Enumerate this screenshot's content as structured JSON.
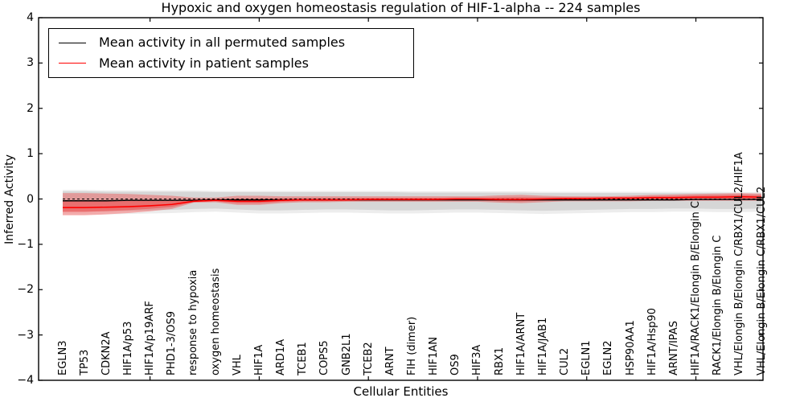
{
  "figure": {
    "title": "Hypoxic and oxygen homeostasis regulation of HIF-1-alpha -- 224 samples",
    "xlabel": "Cellular Entities",
    "ylabel": "Inferred Activity"
  },
  "legend": {
    "entries": [
      {
        "label": "Mean activity in all permuted samples",
        "color": "#000000"
      },
      {
        "label": "Mean activity in patient samples",
        "color": "#ff0000"
      }
    ]
  },
  "colors": {
    "permuted_line": "#000000",
    "patient_line": "#ff0000",
    "patient_band": "#ff0000",
    "permuted_band": "#999999",
    "axis": "#000000"
  },
  "chart_data": {
    "type": "line",
    "title": "Hypoxic and oxygen homeostasis regulation of HIF-1-alpha -- 224 samples",
    "xlabel": "Cellular Entities",
    "ylabel": "Inferred Activity",
    "ylim": [
      -4,
      4
    ],
    "y_ticks": [
      "4",
      "3",
      "2",
      "1",
      "0",
      "−1",
      "−2",
      "−3",
      "−4"
    ],
    "y_tick_values": [
      4,
      3,
      2,
      1,
      0,
      -1,
      -2,
      -3,
      -4
    ],
    "x_major_tick_indices": [
      5,
      10,
      15,
      20,
      25,
      30
    ],
    "grid": false,
    "legend_position": "upper left",
    "zero_reference_line": 0.0,
    "categories": [
      "EGLN3",
      "TP53",
      "CDKN2A",
      "HIF1A/p53",
      "HIF1A/p19ARF",
      "PHD1-3/OS9",
      "response to hypoxia",
      "oxygen homeostasis",
      "VHL",
      "HIF1A",
      "ARD1A",
      "TCEB1",
      "COPS5",
      "GNB2L1",
      "TCEB2",
      "ARNT",
      "FIH (dimer)",
      "HIF1AN",
      "OS9",
      "HIF3A",
      "RBX1",
      "HIF1A/ARNT",
      "HIF1A/JAB1",
      "CUL2",
      "EGLN1",
      "EGLN2",
      "HSP90AA1",
      "HIF1A/Hsp90",
      "ARNT/IPAS",
      "HIF1A/RACK1/Elongin B/Elongin C",
      "RACK1/Elongin B/Elongin C",
      "VHL/Elongin B/Elongin C/RBX1/CUL2/HIF1A",
      "VHL/Elongin B/Elongin C/RBX1/CUL2"
    ],
    "series": [
      {
        "name": "Mean activity in all permuted samples",
        "style": "solid",
        "color": "#000000",
        "values": [
          -0.04,
          -0.04,
          -0.04,
          -0.03,
          -0.03,
          -0.03,
          -0.03,
          -0.02,
          -0.02,
          -0.02,
          -0.02,
          -0.02,
          -0.02,
          -0.02,
          -0.02,
          -0.02,
          -0.02,
          -0.02,
          -0.02,
          -0.02,
          -0.02,
          -0.02,
          -0.02,
          -0.02,
          -0.02,
          -0.02,
          -0.02,
          -0.02,
          -0.02,
          -0.01,
          -0.01,
          -0.01,
          -0.01
        ],
        "band_upper": [
          0.17,
          0.17,
          0.16,
          0.16,
          0.16,
          0.16,
          0.16,
          0.15,
          0.15,
          0.15,
          0.15,
          0.15,
          0.15,
          0.15,
          0.15,
          0.15,
          0.14,
          0.14,
          0.14,
          0.14,
          0.14,
          0.14,
          0.13,
          0.13,
          0.13,
          0.13,
          0.13,
          0.13,
          0.13,
          0.13,
          0.13,
          0.12,
          0.12
        ],
        "band_lower": [
          -0.28,
          -0.28,
          -0.27,
          -0.26,
          -0.25,
          -0.24,
          -0.22,
          -0.21,
          -0.23,
          -0.25,
          -0.25,
          -0.24,
          -0.23,
          -0.23,
          -0.24,
          -0.25,
          -0.25,
          -0.24,
          -0.23,
          -0.23,
          -0.24,
          -0.25,
          -0.26,
          -0.25,
          -0.24,
          -0.23,
          -0.22,
          -0.22,
          -0.21,
          -0.21,
          -0.22,
          -0.22,
          -0.21
        ]
      },
      {
        "name": "Mean activity in patient samples",
        "style": "solid",
        "color": "#ff0000",
        "values": [
          -0.19,
          -0.19,
          -0.18,
          -0.17,
          -0.15,
          -0.12,
          -0.05,
          -0.03,
          -0.05,
          -0.05,
          -0.03,
          -0.02,
          -0.02,
          -0.02,
          -0.01,
          -0.01,
          -0.01,
          -0.01,
          0.0,
          0.0,
          -0.01,
          -0.01,
          0.0,
          0.01,
          0.01,
          0.02,
          0.02,
          0.03,
          0.03,
          0.04,
          0.04,
          0.05,
          0.04
        ],
        "band_upper": [
          0.13,
          0.13,
          0.12,
          0.11,
          0.09,
          0.07,
          0.03,
          0.03,
          0.07,
          0.07,
          0.06,
          0.06,
          0.06,
          0.06,
          0.06,
          0.06,
          0.06,
          0.06,
          0.06,
          0.06,
          0.08,
          0.09,
          0.07,
          0.06,
          0.06,
          0.06,
          0.07,
          0.09,
          0.1,
          0.11,
          0.12,
          0.13,
          0.12
        ],
        "band_lower": [
          -0.36,
          -0.36,
          -0.34,
          -0.31,
          -0.27,
          -0.22,
          -0.08,
          -0.07,
          -0.13,
          -0.13,
          -0.09,
          -0.07,
          -0.07,
          -0.06,
          -0.06,
          -0.06,
          -0.06,
          -0.06,
          -0.06,
          -0.06,
          -0.08,
          -0.09,
          -0.07,
          -0.05,
          -0.05,
          -0.05,
          -0.05,
          -0.04,
          -0.04,
          -0.04,
          -0.04,
          -0.04,
          -0.04
        ]
      }
    ]
  }
}
